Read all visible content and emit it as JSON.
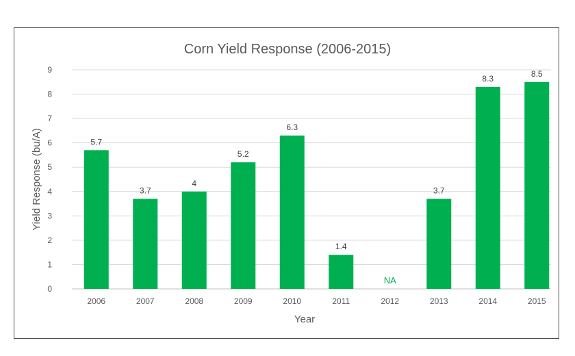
{
  "chart_data": {
    "type": "bar",
    "title": "Corn Yield Response (2006-2015)",
    "xlabel": "Year",
    "ylabel": "Yield Response (bu/A)",
    "ylim": [
      0,
      9
    ],
    "yticks": [
      0,
      1,
      2,
      3,
      4,
      5,
      6,
      7,
      8,
      9
    ],
    "grid": true,
    "legend": "none",
    "bar_color": "#00b050",
    "categories": [
      "2006",
      "2007",
      "2008",
      "2009",
      "2010",
      "2011",
      "2012",
      "2013",
      "2014",
      "2015"
    ],
    "values": [
      5.7,
      3.7,
      4,
      5.2,
      6.3,
      1.4,
      null,
      3.7,
      8.3,
      8.5
    ],
    "data_labels": [
      "5.7",
      "3.7",
      "4",
      "5.2",
      "6.3",
      "1.4",
      "NA",
      "3.7",
      "8.3",
      "8.5"
    ]
  }
}
